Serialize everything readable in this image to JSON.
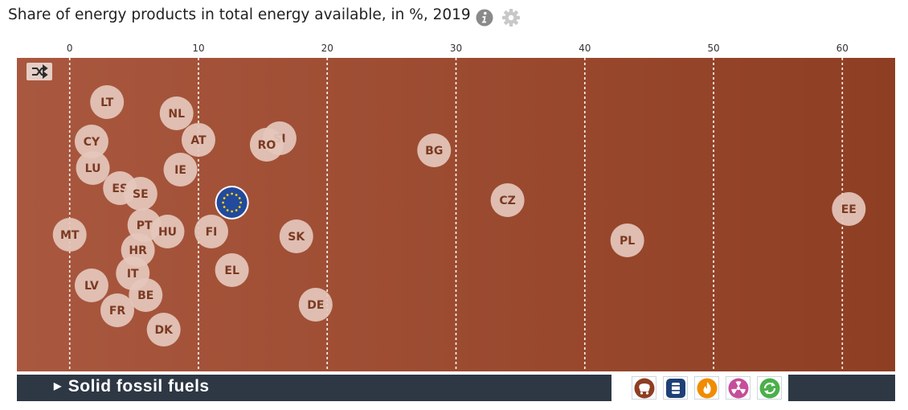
{
  "title": "Share of energy products in total energy available, in %, 2019",
  "header_icons": [
    "info-icon",
    "settings-gear-icon"
  ],
  "colors": {
    "background_left": "#a9583f",
    "background_right": "#8e3e22",
    "bubble": "#e4c6bb",
    "bubble_text": "#7b3a22",
    "bar": "#2e3845",
    "eu_flag": "#234a9c",
    "eu_stars": "#ffd400"
  },
  "footer": {
    "selected_product": "Solid fossil fuels",
    "product_buttons": [
      {
        "name": "solid-fossil-fuels",
        "icon": "coal-cart-icon",
        "color": "#8e3e22"
      },
      {
        "name": "oil",
        "icon": "oil-barrel-icon",
        "color": "#1f3f77"
      },
      {
        "name": "natural-gas",
        "icon": "flame-icon",
        "color": "#f08c00"
      },
      {
        "name": "nuclear",
        "icon": "radiation-icon",
        "color": "#c64e9a"
      },
      {
        "name": "renewables",
        "icon": "recycle-icon",
        "color": "#4bb04a"
      }
    ]
  },
  "chart_data": {
    "type": "scatter",
    "title": "Share of energy products in total energy available, in %, 2019",
    "x_axis": {
      "ticks": [
        0,
        10,
        20,
        30,
        40,
        50,
        60
      ],
      "range": [
        -4.1,
        64.1
      ],
      "position": "top"
    },
    "grid": "vertical dashed",
    "toggle_icon": "shuffle-icon",
    "points": [
      {
        "label": "LT",
        "value": 2.9
      },
      {
        "label": "NL",
        "value": 8.3
      },
      {
        "label": "SI",
        "value": 16.3
      },
      {
        "label": "CY",
        "value": 1.7
      },
      {
        "label": "AT",
        "value": 10.0
      },
      {
        "label": "RO",
        "value": 15.3
      },
      {
        "label": "BG",
        "value": 28.3
      },
      {
        "label": "LU",
        "value": 1.8
      },
      {
        "label": "IE",
        "value": 8.6
      },
      {
        "label": "ES",
        "value": 3.9
      },
      {
        "label": "SE",
        "value": 5.5
      },
      {
        "label": "EU",
        "value": 12.6,
        "flag": true
      },
      {
        "label": "CZ",
        "value": 34.0
      },
      {
        "label": "EE",
        "value": 60.5
      },
      {
        "label": "MT",
        "value": 0.0
      },
      {
        "label": "PT",
        "value": 5.8
      },
      {
        "label": "HU",
        "value": 7.6
      },
      {
        "label": "FI",
        "value": 11.0
      },
      {
        "label": "SK",
        "value": 17.6
      },
      {
        "label": "PL",
        "value": 43.3
      },
      {
        "label": "HR",
        "value": 5.3
      },
      {
        "label": "IT",
        "value": 4.9
      },
      {
        "label": "EL",
        "value": 12.6
      },
      {
        "label": "LV",
        "value": 1.7
      },
      {
        "label": "BE",
        "value": 5.9
      },
      {
        "label": "DE",
        "value": 19.1
      },
      {
        "label": "FR",
        "value": 3.7
      },
      {
        "label": "DK",
        "value": 7.3
      }
    ]
  }
}
